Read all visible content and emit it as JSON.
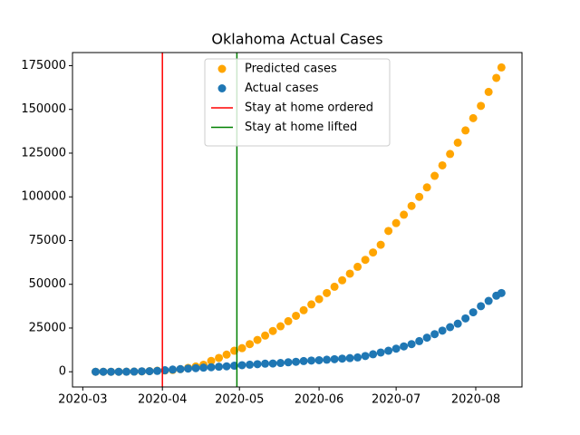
{
  "chart_data": {
    "type": "scatter",
    "title": "Oklahoma Actual Cases",
    "x": [
      "2020-03-06",
      "2020-03-09",
      "2020-03-12",
      "2020-03-15",
      "2020-03-18",
      "2020-03-21",
      "2020-03-24",
      "2020-03-27",
      "2020-03-30",
      "2020-04-02",
      "2020-04-05",
      "2020-04-08",
      "2020-04-11",
      "2020-04-14",
      "2020-04-17",
      "2020-04-20",
      "2020-04-23",
      "2020-04-26",
      "2020-04-29",
      "2020-05-02",
      "2020-05-05",
      "2020-05-08",
      "2020-05-11",
      "2020-05-14",
      "2020-05-17",
      "2020-05-20",
      "2020-05-23",
      "2020-05-26",
      "2020-05-29",
      "2020-06-01",
      "2020-06-04",
      "2020-06-07",
      "2020-06-10",
      "2020-06-13",
      "2020-06-16",
      "2020-06-19",
      "2020-06-22",
      "2020-06-25",
      "2020-06-28",
      "2020-07-01",
      "2020-07-04",
      "2020-07-07",
      "2020-07-10",
      "2020-07-13",
      "2020-07-16",
      "2020-07-19",
      "2020-07-22",
      "2020-07-25",
      "2020-07-28",
      "2020-07-31",
      "2020-08-03",
      "2020-08-06",
      "2020-08-09",
      "2020-08-11"
    ],
    "series": [
      {
        "name": "Predicted cases",
        "color": "#ffa500",
        "values": [
          0,
          0,
          0,
          0,
          50,
          100,
          200,
          350,
          600,
          700,
          1000,
          1500,
          2200,
          3000,
          4000,
          6200,
          7900,
          9800,
          12000,
          13500,
          15800,
          18200,
          20700,
          23300,
          26000,
          28900,
          32000,
          35200,
          38500,
          41500,
          45000,
          48600,
          52300,
          56100,
          60000,
          64000,
          68200,
          72600,
          80500,
          85000,
          89800,
          94800,
          100000,
          105400,
          112000,
          118000,
          124500,
          131000,
          138000,
          145000,
          152000,
          160000,
          168000,
          174000
        ]
      },
      {
        "name": "Actual cases",
        "color": "#1f77b4",
        "values": [
          0,
          1,
          3,
          10,
          40,
          80,
          250,
          330,
          480,
          880,
          1250,
          1520,
          1800,
          2070,
          2350,
          2600,
          2890,
          3120,
          3470,
          3750,
          4040,
          4330,
          4620,
          4730,
          5000,
          5400,
          5700,
          6100,
          6400,
          6600,
          6900,
          7200,
          7500,
          7800,
          8200,
          9000,
          10000,
          11000,
          12000,
          13200,
          14500,
          15800,
          17500,
          19500,
          21500,
          23500,
          25500,
          27500,
          30500,
          34000,
          37500,
          40500,
          43500,
          45000
        ]
      }
    ],
    "vlines": [
      {
        "name": "Stay at home ordered",
        "color": "#ff0000",
        "x": "2020-04-01"
      },
      {
        "name": "Stay at home lifted",
        "color": "#008000",
        "x": "2020-04-30"
      }
    ],
    "xlim": [
      "2020-02-26",
      "2020-08-19"
    ],
    "xticks": [
      {
        "value": "2020-03-01",
        "label": "2020-03"
      },
      {
        "value": "2020-04-01",
        "label": "2020-04"
      },
      {
        "value": "2020-05-01",
        "label": "2020-05"
      },
      {
        "value": "2020-06-01",
        "label": "2020-06"
      },
      {
        "value": "2020-07-01",
        "label": "2020-07"
      },
      {
        "value": "2020-08-01",
        "label": "2020-08"
      }
    ],
    "ylim": [
      -8700,
      182500
    ],
    "yticks": [
      0,
      25000,
      50000,
      75000,
      100000,
      125000,
      150000,
      175000
    ],
    "legend": "upper center"
  }
}
